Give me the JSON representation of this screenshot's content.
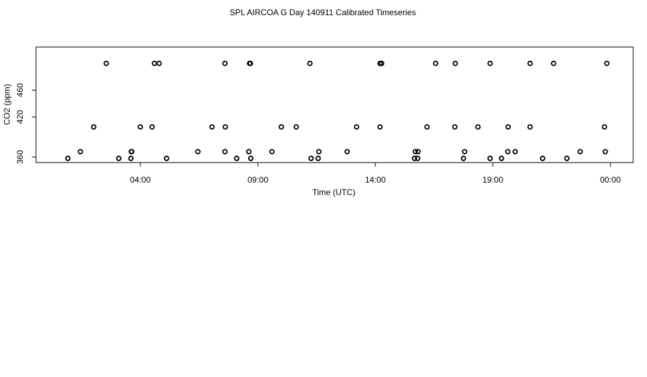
{
  "chart_data": {
    "type": "scatter",
    "title": "SPL AIRCOA G  Day 140911  Calibrated Timeseries",
    "xlabel": "Time (UTC)",
    "ylabel": "CO2 (ppm)",
    "x_ticks": [
      "04:00",
      "09:00",
      "14:00",
      "19:00",
      "00:00"
    ],
    "y_ticks": [
      "360",
      "420",
      "460"
    ],
    "series": [
      {
        "x": [
          "00:55",
          "01:27",
          "02:01",
          "02:33",
          "03:05",
          "03:37",
          "04:00",
          "04:48",
          "06:27",
          "07:03",
          "07:36",
          "08:06",
          "08:37",
          "08:39",
          "10:00",
          "11:34",
          "11:36",
          "13:12",
          "14:12",
          "15:48",
          "15:49",
          "17:23",
          "17:24",
          "18:53",
          "19:57",
          "20:35",
          "21:35",
          "22:09",
          "22:43",
          "23:45",
          "23:51",
          "03:36",
          "03:38",
          "04:30",
          "04:36",
          "05:07",
          "07:36",
          "07:37",
          "08:41",
          "08:42",
          "09:36",
          "10:38",
          "11:13",
          "11:16",
          "12:48",
          "14:12",
          "14:16",
          "15:40",
          "15:42",
          "16:12",
          "16:34",
          "17:45",
          "17:48",
          "18:22",
          "18:53",
          "19:22",
          "19:38",
          "19:39",
          "20:35",
          "21:07",
          "23:47"
        ],
        "y": [
          358,
          368,
          405,
          500,
          358,
          368,
          405,
          500,
          368,
          405,
          500,
          358,
          368,
          500,
          405,
          358,
          368,
          405,
          500,
          358,
          368,
          405,
          500,
          358,
          368,
          405,
          500,
          358,
          368,
          405,
          500,
          358,
          368,
          405,
          500,
          358,
          368,
          405,
          500,
          358,
          368,
          405,
          500,
          358,
          368,
          405,
          500,
          358,
          368,
          405,
          500,
          358,
          368,
          405,
          500,
          358,
          368,
          405,
          500,
          358,
          368
        ]
      }
    ],
    "xlim": [
      "00:00",
      "25:00"
    ],
    "ylim": [
      355,
      500
    ]
  }
}
